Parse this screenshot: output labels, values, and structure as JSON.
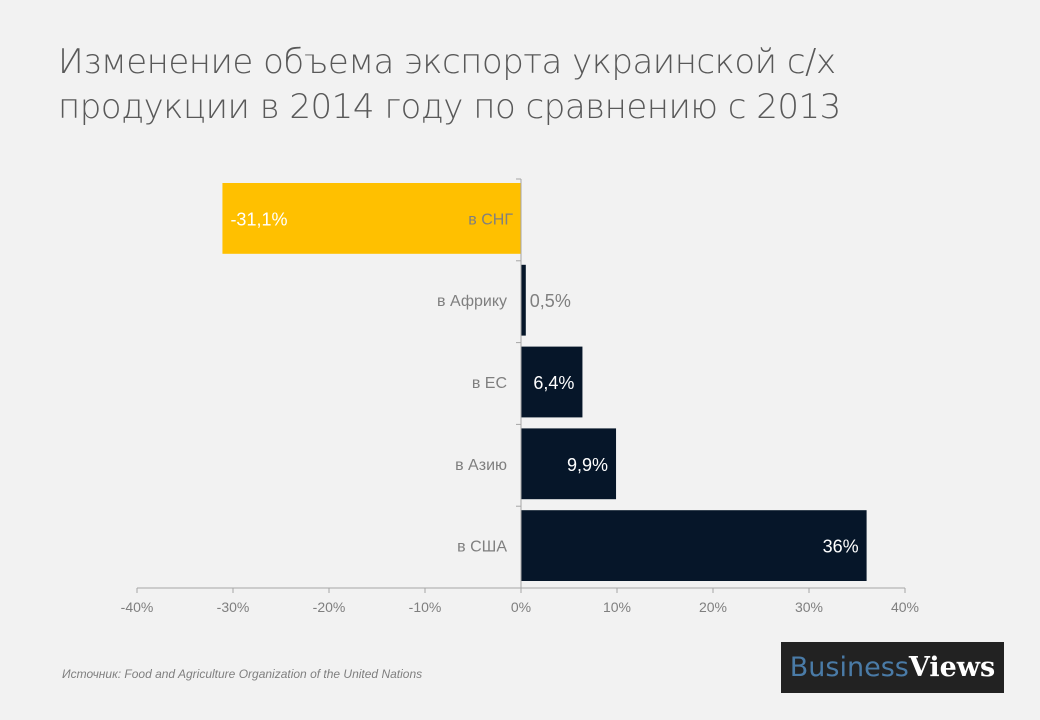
{
  "title": "Изменение объема экспорта украинской с/х продукции в 2014 году по сравнению с 2013",
  "source": "Источник: Food and Agriculture Organization of the United Nations",
  "logo": {
    "part1": "Business",
    "part2": "Views"
  },
  "chart_data": {
    "type": "bar",
    "orientation": "horizontal",
    "title": "Изменение объема экспорта украинской с/х продукции в 2014 году по сравнению с 2013",
    "categories": [
      "в СНГ",
      "в Африку",
      "в ЕС",
      "в Азию",
      "в США"
    ],
    "values": [
      -31.1,
      0.5,
      6.4,
      9.9,
      36
    ],
    "data_labels": [
      "-31,1%",
      "0,5%",
      "6,4%",
      "9,9%",
      "36%"
    ],
    "colors": [
      "#ffc000",
      "#061629",
      "#061629",
      "#061629",
      "#061629"
    ],
    "xlim": [
      -40,
      40
    ],
    "x_ticks": [
      "-40%",
      "-30%",
      "-20%",
      "-10%",
      "0%",
      "10%",
      "20%",
      "30%",
      "40%"
    ],
    "grid": false
  }
}
